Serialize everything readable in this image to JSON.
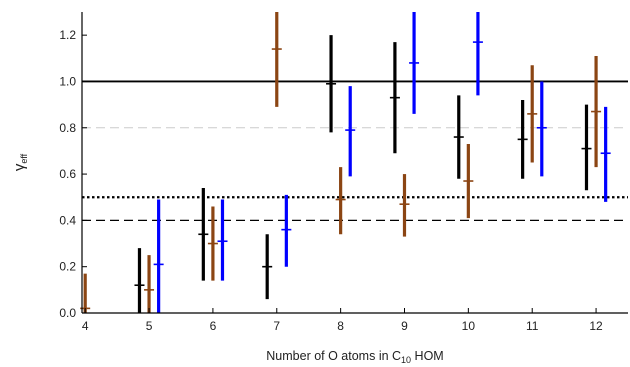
{
  "chart_data": {
    "type": "scatter",
    "xlabel": "Number of O atoms in C",
    "xlabel_sub": "10",
    "xlabel_tail": " HOM",
    "ylabel": "γ",
    "ylabel_sub": "eff",
    "xlim": [
      3.95,
      12.5
    ],
    "ylim": [
      0,
      1.3
    ],
    "x_ticks": [
      4,
      5,
      6,
      7,
      8,
      9,
      10,
      11,
      12
    ],
    "y_ticks": [
      0.0,
      0.2,
      0.4,
      0.6,
      0.8,
      1.0,
      1.2
    ],
    "y_tick_labels": [
      "0.0",
      "0.2",
      "0.4",
      "0.6",
      "0.8",
      "1.0",
      "1.2"
    ],
    "grid": "none",
    "reference_lines": [
      {
        "y": 1.0,
        "style": "solid",
        "color": "#000000"
      },
      {
        "y": 0.8,
        "style": "dashed",
        "color": "#cccccc"
      },
      {
        "y": 0.5,
        "style": "dotted",
        "color": "#000000"
      },
      {
        "y": 0.4,
        "style": "dashed",
        "color": "#000000"
      }
    ],
    "series": [
      {
        "color": "#000000",
        "offset": -0.15,
        "points": [
          {
            "x": 5,
            "y": 0.12,
            "low": 0.0,
            "high": 0.28
          },
          {
            "x": 6,
            "y": 0.34,
            "low": 0.14,
            "high": 0.54
          },
          {
            "x": 7,
            "y": 0.2,
            "low": 0.06,
            "high": 0.34
          },
          {
            "x": 8,
            "y": 0.99,
            "low": 0.78,
            "high": 1.2
          },
          {
            "x": 9,
            "y": 0.93,
            "low": 0.69,
            "high": 1.17
          },
          {
            "x": 10,
            "y": 0.76,
            "low": 0.58,
            "high": 0.94
          },
          {
            "x": 11,
            "y": 0.75,
            "low": 0.58,
            "high": 0.92
          },
          {
            "x": 12,
            "y": 0.71,
            "low": 0.53,
            "high": 0.9
          }
        ]
      },
      {
        "color": "#8b4513",
        "offset": 0.0,
        "points": [
          {
            "x": 4,
            "y": 0.02,
            "low": 0.0,
            "high": 0.17
          },
          {
            "x": 5,
            "y": 0.1,
            "low": 0.0,
            "high": 0.25
          },
          {
            "x": 6,
            "y": 0.3,
            "low": 0.14,
            "high": 0.46
          },
          {
            "x": 7,
            "y": 1.14,
            "low": 0.89,
            "high": 1.3
          },
          {
            "x": 8,
            "y": 0.49,
            "low": 0.34,
            "high": 0.63
          },
          {
            "x": 9,
            "y": 0.47,
            "low": 0.33,
            "high": 0.6
          },
          {
            "x": 10,
            "y": 0.57,
            "low": 0.41,
            "high": 0.73
          },
          {
            "x": 11,
            "y": 0.86,
            "low": 0.65,
            "high": 1.07
          },
          {
            "x": 12,
            "y": 0.87,
            "low": 0.63,
            "high": 1.11
          }
        ]
      },
      {
        "color": "#0000ff",
        "offset": 0.15,
        "points": [
          {
            "x": 5,
            "y": 0.21,
            "low": 0.0,
            "high": 0.49
          },
          {
            "x": 6,
            "y": 0.31,
            "low": 0.14,
            "high": 0.49
          },
          {
            "x": 7,
            "y": 0.36,
            "low": 0.2,
            "high": 0.51
          },
          {
            "x": 8,
            "y": 0.79,
            "low": 0.59,
            "high": 0.98
          },
          {
            "x": 9,
            "y": 1.08,
            "low": 0.86,
            "high": 1.3
          },
          {
            "x": 10,
            "y": 1.17,
            "low": 0.94,
            "high": 1.3
          },
          {
            "x": 11,
            "y": 0.8,
            "low": 0.59,
            "high": 1.0
          },
          {
            "x": 12,
            "y": 0.69,
            "low": 0.48,
            "high": 0.89
          }
        ]
      }
    ]
  }
}
